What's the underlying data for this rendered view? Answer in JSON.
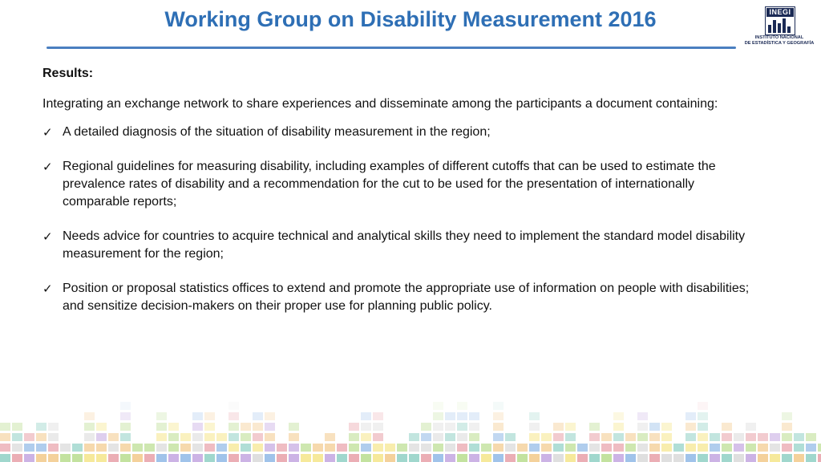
{
  "slide": {
    "title": "Working Group on Disability Measurement 2016",
    "title_color": "#2e6fb5",
    "rule_color": "#4a7fc0"
  },
  "logo": {
    "wordmark": "INEGI",
    "line1": "INSTITUTO NACIONAL",
    "line2": "DE ESTADÍSTICA Y GEOGRAFÍA",
    "color": "#1b2a55"
  },
  "body": {
    "heading": "Results:",
    "intro": "Integrating an exchange network to share experiences and disseminate among the participants a document containing:",
    "bullet_icon": "checkmark-icon",
    "items": [
      "A detailed diagnosis of the situation of disability measurement in the region;",
      "Regional guidelines for measuring disability, including examples of different cutoffs that can be used to estimate the prevalence rates of disability and a recommendation for the cut to be used for the presentation of internationally comparable reports;",
      "Needs advice for countries to acquire technical and analytical skills they need to implement the standard model disability measurement for the region;",
      "Position or proposal statistics offices to extend and promote the appropriate use of information on people with disabilities; and sensitize decision-makers on their proper use for planning public policy."
    ]
  },
  "footer": {
    "decoration": "colored-bars-pattern",
    "palette": [
      "#e8a0a8",
      "#f2c98a",
      "#f5e58a",
      "#b9dd8e",
      "#8fd0c4",
      "#8fb8e6",
      "#c3a6e0",
      "#d9d9d9"
    ]
  }
}
